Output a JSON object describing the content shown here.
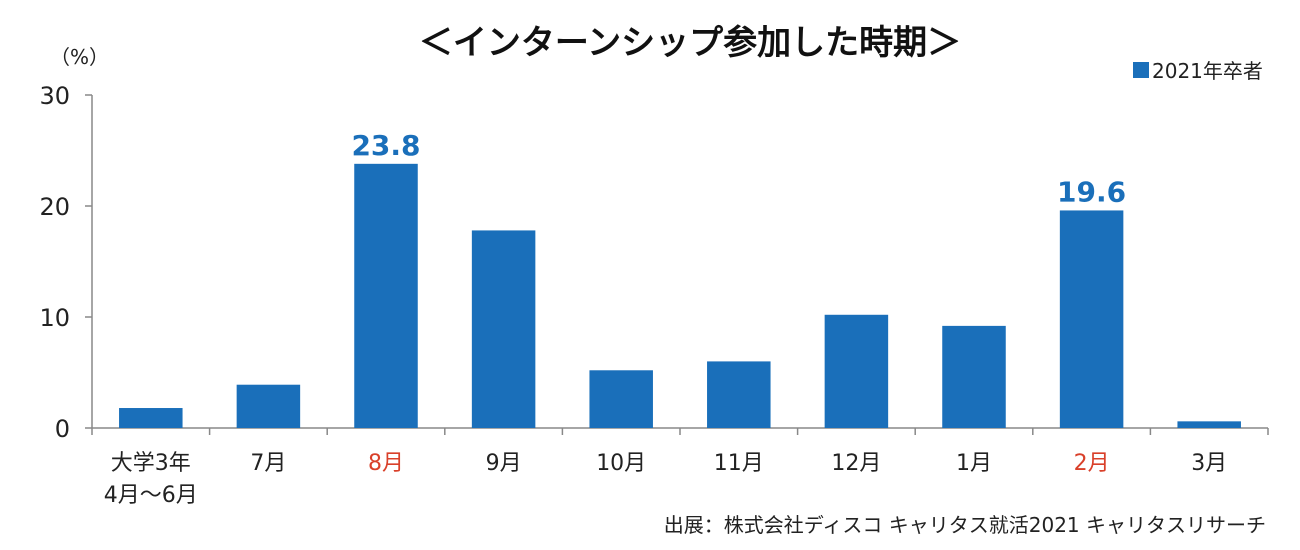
{
  "chart_data": {
    "type": "bar",
    "title": "＜インターンシップ参加した時期＞",
    "unit_label": "（%）",
    "ylim": [
      0,
      30
    ],
    "yticks": [
      "0",
      "10",
      "20",
      "30"
    ],
    "categories": [
      [
        "大学3年",
        "4月～6月"
      ],
      [
        "7月"
      ],
      [
        "8月"
      ],
      [
        "9月"
      ],
      [
        "10月"
      ],
      [
        "11月"
      ],
      [
        "12月"
      ],
      [
        "1月"
      ],
      [
        "2月"
      ],
      [
        "3月"
      ]
    ],
    "highlight_categories": [
      2,
      8
    ],
    "series": [
      {
        "name": "2021年卒者",
        "color": "#1a6fba",
        "values": [
          1.8,
          3.9,
          23.8,
          17.8,
          5.2,
          6.0,
          10.2,
          9.2,
          19.6,
          0.6
        ]
      }
    ],
    "data_labels": [
      {
        "index": 2,
        "text": "23.8"
      },
      {
        "index": 8,
        "text": "19.6"
      }
    ],
    "legend_position": "top-right",
    "grid": false,
    "label_highlight_color": "#d9402a",
    "source": "出展：株式会社ディスコ キャリタス就活2021 キャリタスリサーチ"
  }
}
